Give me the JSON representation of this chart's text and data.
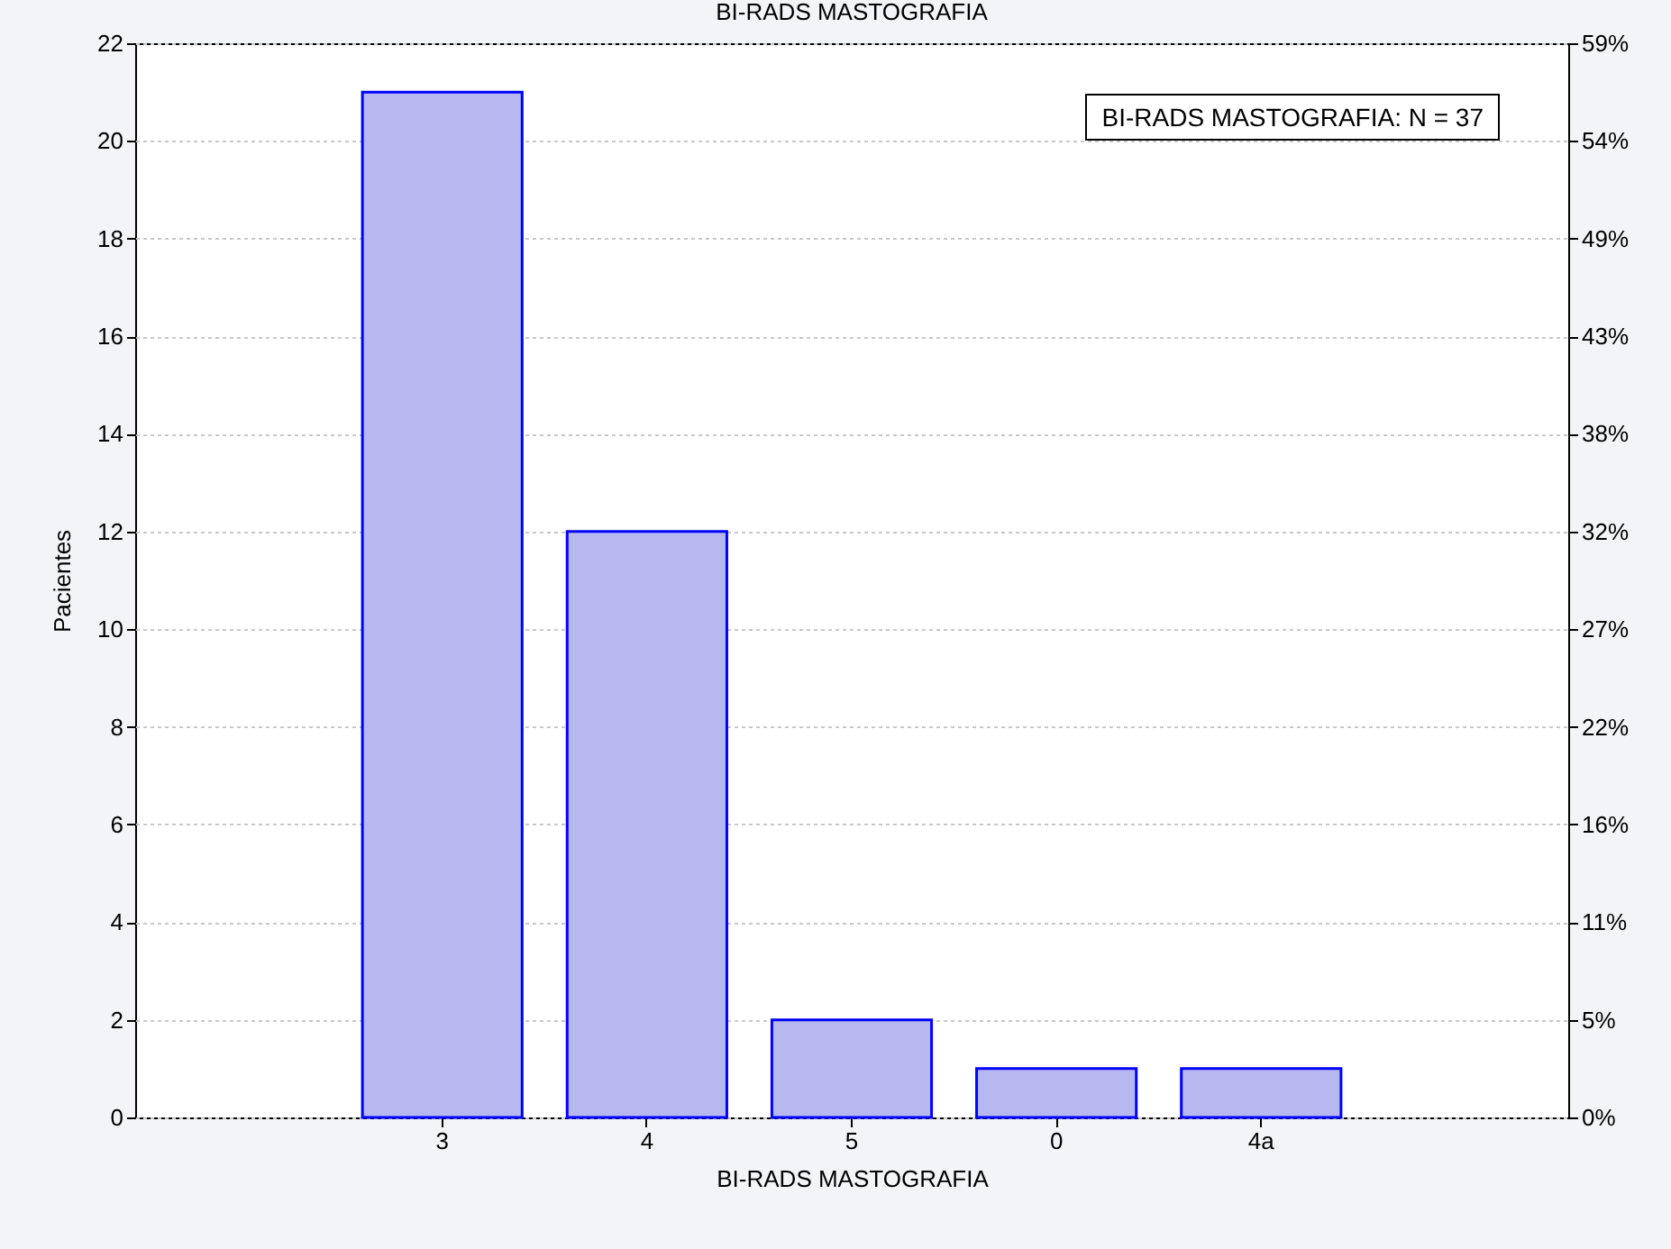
{
  "chart_data": {
    "type": "bar",
    "title": "BI-RADS MASTOGRAFIA",
    "xlabel": "BI-RADS MASTOGRAFIA",
    "ylabel": "Pacientes",
    "categories": [
      "3",
      "4",
      "5",
      "0",
      "4a"
    ],
    "values": [
      21,
      12,
      2,
      1,
      1
    ],
    "color": "#b8b8f0",
    "ylim": [
      0,
      22
    ],
    "yticks": [
      0,
      2,
      4,
      6,
      8,
      10,
      12,
      14,
      16,
      18,
      20,
      22
    ],
    "y2lim": [
      0,
      59.46
    ],
    "y2ticks": [
      {
        "value": 0,
        "label": "0%"
      },
      {
        "value": 5.41,
        "label": "5%"
      },
      {
        "value": 10.81,
        "label": "11%"
      },
      {
        "value": 16.22,
        "label": "16%"
      },
      {
        "value": 21.62,
        "label": "22%"
      },
      {
        "value": 27.03,
        "label": "27%"
      },
      {
        "value": 32.43,
        "label": "32%"
      },
      {
        "value": 37.84,
        "label": "38%"
      },
      {
        "value": 43.24,
        "label": "43%"
      },
      {
        "value": 48.65,
        "label": "49%"
      },
      {
        "value": 54.05,
        "label": "54%"
      },
      {
        "value": 59.46,
        "label": "59%"
      }
    ],
    "annotations": [
      "BI-RADS MASTOGRAFIA:  N = 37"
    ],
    "grid": "y"
  }
}
